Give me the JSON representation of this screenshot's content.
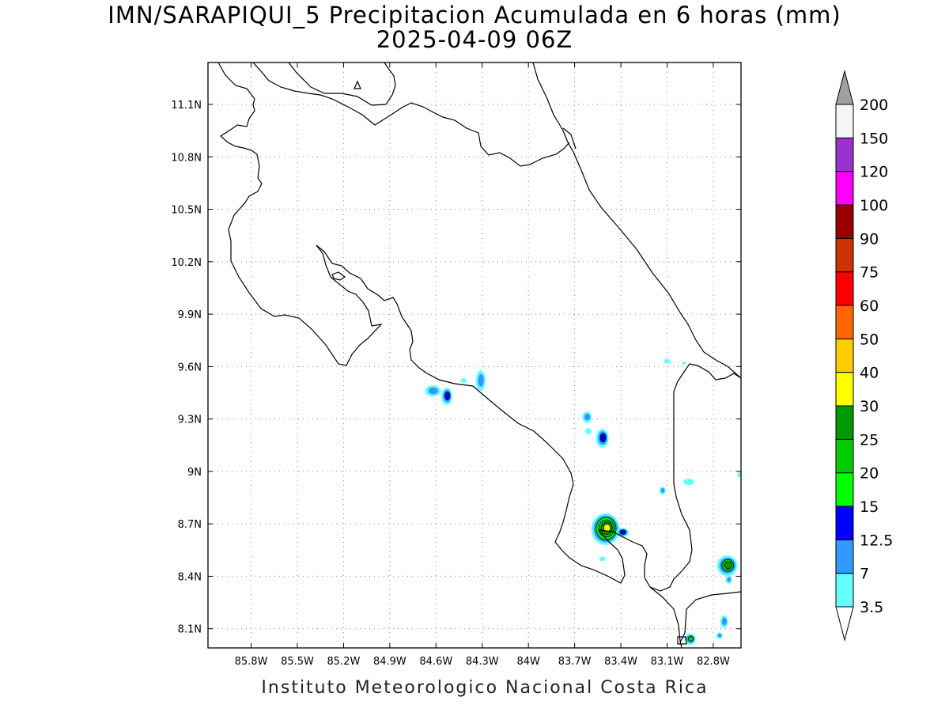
{
  "title_line1": "IMN/SARAPIQUI_5 Precipitacion Acumulada en 6 horas (mm)",
  "title_line2": "2025-04-09 06Z",
  "credit": "Instituto Meteorologico Nacional Costa Rica",
  "map": {
    "lon_range": [
      -86.08,
      -82.62
    ],
    "lat_range": [
      7.99,
      11.34
    ],
    "lon_ticks": [
      "85.8W",
      "85.5W",
      "85.2W",
      "84.9W",
      "84.6W",
      "84.3W",
      "84W",
      "83.7W",
      "83.4W",
      "83.1W",
      "82.8W"
    ],
    "lat_ticks": [
      "11.1N",
      "10.8N",
      "10.5N",
      "10.2N",
      "9.9N",
      "9.6N",
      "9.3N",
      "9N",
      "8.7N",
      "8.4N",
      "8.1N"
    ],
    "grid": "dotted"
  },
  "colorbar": {
    "labels": [
      "3.5",
      "7",
      "12.5",
      "15",
      "20",
      "25",
      "30",
      "40",
      "50",
      "60",
      "75",
      "90",
      "100",
      "120",
      "150",
      "200"
    ],
    "colors": [
      "#66ffff",
      "#3399ff",
      "#0000ff",
      "#00ff00",
      "#00cc00",
      "#009900",
      "#ffff00",
      "#ffcc00",
      "#ff6600",
      "#ff0000",
      "#cc3300",
      "#990000",
      "#ff00ff",
      "#9933cc",
      "#f5f5f5",
      "#a0a0a0"
    ],
    "over_color": "#a0a0a0",
    "under_color": "#ffffff"
  },
  "precip_cells": [
    {
      "name": "cell-nicoya-north",
      "lon": -84.62,
      "lat": 9.46,
      "rx": 10,
      "ry": 7,
      "levels": [
        "#66ffff",
        "#3399ff"
      ]
    },
    {
      "name": "cell-nicoya-center",
      "lon": -84.53,
      "lat": 9.43,
      "rx": 7,
      "ry": 11,
      "levels": [
        "#66ffff",
        "#3399ff",
        "#0000ff"
      ]
    },
    {
      "name": "cell-puntarenas",
      "lon": -84.31,
      "lat": 9.52,
      "rx": 6,
      "ry": 13,
      "levels": [
        "#66ffff",
        "#3399ff"
      ]
    },
    {
      "name": "cell-coast-small",
      "lon": -84.42,
      "lat": 9.52,
      "rx": 4,
      "ry": 3,
      "levels": [
        "#66ffff"
      ]
    },
    {
      "name": "cell-dominical-1",
      "lon": -83.62,
      "lat": 9.31,
      "rx": 6,
      "ry": 7,
      "levels": [
        "#66ffff",
        "#3399ff"
      ]
    },
    {
      "name": "cell-dominical-2",
      "lon": -83.61,
      "lat": 9.23,
      "rx": 4,
      "ry": 4,
      "levels": [
        "#66ffff"
      ]
    },
    {
      "name": "cell-dominical-3",
      "lon": -83.52,
      "lat": 9.19,
      "rx": 8,
      "ry": 12,
      "levels": [
        "#66ffff",
        "#3399ff",
        "#0000ff"
      ]
    },
    {
      "name": "cell-limon",
      "lon": -83.1,
      "lat": 9.63,
      "rx": 4,
      "ry": 3,
      "levels": [
        "#66ffff"
      ]
    },
    {
      "name": "cell-central-south",
      "lon": -82.96,
      "lat": 8.94,
      "rx": 7,
      "ry": 4,
      "levels": [
        "#66ffff"
      ]
    },
    {
      "name": "cell-perez-zeledon",
      "lon": -83.13,
      "lat": 8.89,
      "rx": 4,
      "ry": 5,
      "levels": [
        "#66ffff",
        "#3399ff"
      ]
    },
    {
      "name": "cell-osa-main",
      "lon": -83.5,
      "lat": 8.67,
      "rx": 18,
      "ry": 20,
      "levels": [
        "#66ffff",
        "#3399ff",
        "#00ff00",
        "#00cc00",
        "#009900",
        "#ffff00"
      ]
    },
    {
      "name": "cell-osa-east",
      "lon": -83.39,
      "lat": 8.65,
      "rx": 8,
      "ry": 6,
      "levels": [
        "#66ffff",
        "#3399ff",
        "#0000ff"
      ]
    },
    {
      "name": "cell-osa-south",
      "lon": -83.52,
      "lat": 8.5,
      "rx": 4,
      "ry": 3,
      "levels": [
        "#66ffff"
      ]
    },
    {
      "name": "cell-panama-border",
      "lon": -82.71,
      "lat": 8.46,
      "rx": 13,
      "ry": 13,
      "levels": [
        "#66ffff",
        "#3399ff",
        "#00cc00",
        "#009900"
      ]
    },
    {
      "name": "cell-border-south",
      "lon": -82.7,
      "lat": 8.38,
      "rx": 4,
      "ry": 5,
      "levels": [
        "#66ffff",
        "#3399ff"
      ]
    },
    {
      "name": "cell-burica",
      "lon": -82.73,
      "lat": 8.14,
      "rx": 5,
      "ry": 8,
      "levels": [
        "#66ffff",
        "#3399ff"
      ]
    },
    {
      "name": "cell-burica-2",
      "lon": -82.76,
      "lat": 8.06,
      "rx": 4,
      "ry": 4,
      "levels": [
        "#66ffff",
        "#3399ff"
      ]
    },
    {
      "name": "cell-punta-burica",
      "lon": -82.95,
      "lat": 8.04,
      "rx": 7,
      "ry": 7,
      "levels": [
        "#66ffff",
        "#3399ff",
        "#00cc00"
      ]
    },
    {
      "name": "cell-edge-east",
      "lon": -82.63,
      "lat": 8.98,
      "rx": 3,
      "ry": 3,
      "levels": [
        "#66ffff"
      ]
    },
    {
      "name": "cell-limon-2",
      "lon": -82.99,
      "lat": 9.62,
      "rx": 2,
      "ry": 2,
      "levels": [
        "#66ffff"
      ]
    }
  ]
}
